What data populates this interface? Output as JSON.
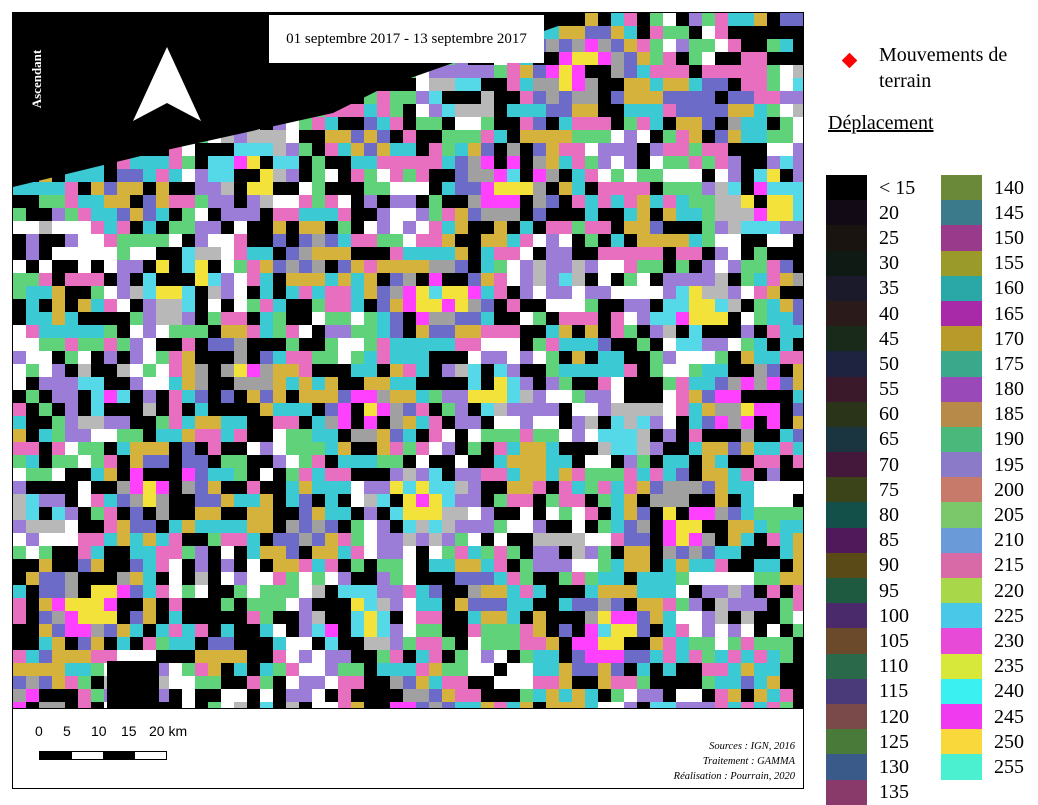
{
  "map": {
    "date_range": "01 septembre 2017 - 13 septembre 2017",
    "orbit_label": "Ascendant",
    "no_data_color": "#000000",
    "fringe_palette": [
      "#ff40ff",
      "#f2e23a",
      "#55d8e8",
      "#b8b8b8",
      "#9b7dd8",
      "#ffffff",
      "#5fd27a",
      "#e86fbf",
      "#3bc9d4",
      "#d4b23c",
      "#6c6cc8",
      "#a0a0a0"
    ]
  },
  "scale": {
    "labels": [
      "0",
      "5",
      "10",
      "15",
      "20 km"
    ],
    "bar_colors": [
      "#000000",
      "#ffffff",
      "#000000",
      "#ffffff"
    ]
  },
  "credits": {
    "sources": "Sources : IGN, 2016",
    "processing": "Traitement : GAMMA",
    "production": "Réalisation : Pourrain, 2020"
  },
  "legend": {
    "point_symbol_color": "#ff0000",
    "point_label": "Mouvements de terrain",
    "title": "Déplacement",
    "left_column": [
      {
        "label": "< 15",
        "color": "#000000"
      },
      {
        "label": "20",
        "color": "#120a14"
      },
      {
        "label": "25",
        "color": "#1a1410"
      },
      {
        "label": "30",
        "color": "#101a14"
      },
      {
        "label": "35",
        "color": "#1a1a2a"
      },
      {
        "label": "40",
        "color": "#2a1a1a"
      },
      {
        "label": "45",
        "color": "#1a2a1a"
      },
      {
        "label": "50",
        "color": "#1e2440"
      },
      {
        "label": "55",
        "color": "#3a1a2a"
      },
      {
        "label": "60",
        "color": "#2a3418"
      },
      {
        "label": "65",
        "color": "#1a3440"
      },
      {
        "label": "70",
        "color": "#44183a"
      },
      {
        "label": "75",
        "color": "#3a4418"
      },
      {
        "label": "80",
        "color": "#14504a"
      },
      {
        "label": "85",
        "color": "#501a5a"
      },
      {
        "label": "90",
        "color": "#5a4a18"
      },
      {
        "label": "95",
        "color": "#1e5a40"
      },
      {
        "label": "100",
        "color": "#4a2a6a"
      },
      {
        "label": "105",
        "color": "#6a4a2a"
      },
      {
        "label": "110",
        "color": "#2a6a4a"
      },
      {
        "label": "115",
        "color": "#4a3a7a"
      },
      {
        "label": "120",
        "color": "#7a4a4a"
      },
      {
        "label": "125",
        "color": "#4a7a3a"
      },
      {
        "label": "130",
        "color": "#3a5a8a"
      },
      {
        "label": "135",
        "color": "#8a3a6a"
      }
    ],
    "right_column": [
      {
        "label": "140",
        "color": "#6a8a3a"
      },
      {
        "label": "145",
        "color": "#3a7a8a"
      },
      {
        "label": "150",
        "color": "#9a3a8a"
      },
      {
        "label": "155",
        "color": "#9a9a2a"
      },
      {
        "label": "160",
        "color": "#2aa8a8"
      },
      {
        "label": "165",
        "color": "#a82aa8"
      },
      {
        "label": "170",
        "color": "#b89a2a"
      },
      {
        "label": "175",
        "color": "#3aa88a"
      },
      {
        "label": "180",
        "color": "#9a4ab8"
      },
      {
        "label": "185",
        "color": "#b88a4a"
      },
      {
        "label": "190",
        "color": "#4ab87a"
      },
      {
        "label": "195",
        "color": "#8a7ac8"
      },
      {
        "label": "200",
        "color": "#c87a6a"
      },
      {
        "label": "205",
        "color": "#7ac86a"
      },
      {
        "label": "210",
        "color": "#6a9ad8"
      },
      {
        "label": "215",
        "color": "#d86aa8"
      },
      {
        "label": "220",
        "color": "#a8d84a"
      },
      {
        "label": "225",
        "color": "#4ac8e8"
      },
      {
        "label": "230",
        "color": "#e84ad8"
      },
      {
        "label": "235",
        "color": "#d8e83a"
      },
      {
        "label": "240",
        "color": "#3af0f0"
      },
      {
        "label": "245",
        "color": "#f03af0"
      },
      {
        "label": "250",
        "color": "#f8d83a"
      },
      {
        "label": "255",
        "color": "#4af0d0"
      }
    ]
  }
}
